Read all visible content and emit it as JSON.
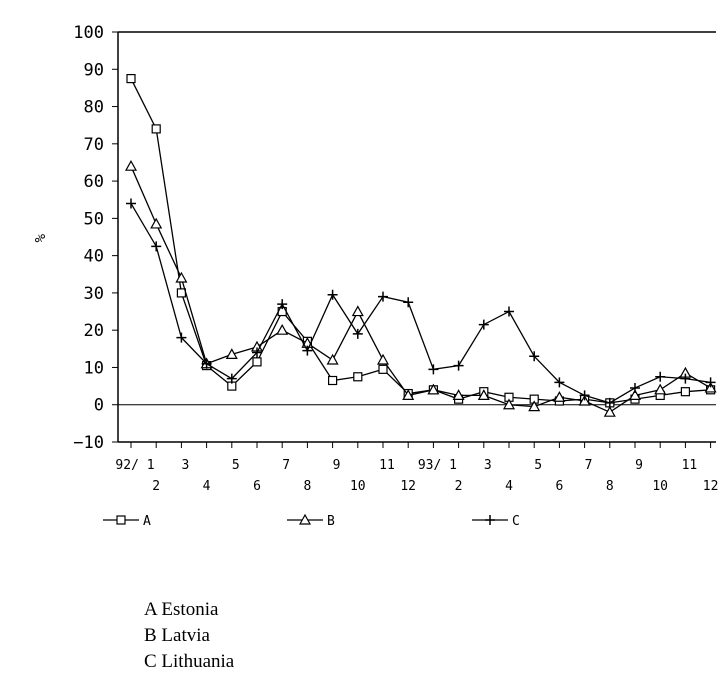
{
  "chart_data": {
    "type": "line",
    "ylabel": "%",
    "ylim": [
      -10,
      100
    ],
    "yticks": [
      -10,
      0,
      10,
      20,
      30,
      40,
      50,
      60,
      70,
      80,
      90,
      100
    ],
    "x_top_labels": [
      "92/ 1",
      "3",
      "5",
      "7",
      "9",
      "11",
      "93/ 1",
      "3",
      "5",
      "7",
      "9",
      "11"
    ],
    "x_bottom_labels": [
      "2",
      "4",
      "6",
      "8",
      "10",
      "12",
      "2",
      "4",
      "6",
      "8",
      "10",
      "12"
    ],
    "x": [
      "92/1",
      "92/2",
      "92/3",
      "92/4",
      "92/5",
      "92/6",
      "92/7",
      "92/8",
      "92/9",
      "92/10",
      "92/11",
      "92/12",
      "93/1",
      "93/2",
      "93/3",
      "93/4",
      "93/5",
      "93/6",
      "93/7",
      "93/8",
      "93/9",
      "93/10",
      "93/11",
      "93/12"
    ],
    "series": [
      {
        "name": "A",
        "marker": "square",
        "values": [
          87.5,
          74,
          30,
          10.5,
          5,
          11.5,
          25,
          17,
          6.5,
          7.5,
          9.5,
          3,
          4,
          1.5,
          3.5,
          2,
          1.5,
          1,
          1.5,
          0.5,
          1.5,
          2.5,
          3.5,
          4
        ]
      },
      {
        "name": "B",
        "marker": "triangle",
        "values": [
          64,
          48.5,
          34,
          11,
          13.5,
          15.5,
          20,
          16.5,
          12,
          25,
          12,
          2.5,
          4,
          2.5,
          2.5,
          0,
          -0.5,
          2,
          1,
          -2,
          2.5,
          4,
          8.5,
          4.5
        ]
      },
      {
        "name": "C",
        "marker": "plus",
        "values": [
          54,
          42.5,
          18,
          11,
          7,
          14,
          27,
          14.5,
          29.5,
          19,
          29,
          27.5,
          9.5,
          10.5,
          21.5,
          25,
          13,
          6,
          2.5,
          0.5,
          4.5,
          7.5,
          7,
          6
        ]
      }
    ]
  },
  "notes": [
    "A Estonia",
    "B Latvia",
    "C Lithuania"
  ]
}
